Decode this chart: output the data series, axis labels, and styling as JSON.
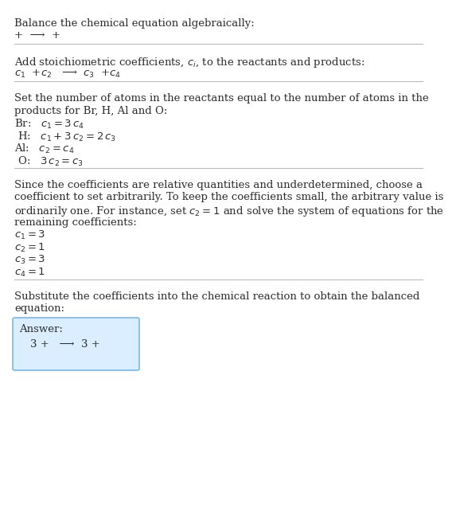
{
  "title": "Balance the chemical equation algebraically:",
  "line1": "+  ⟶  +",
  "section1_title": "Add stoichiometric coefficients, $c_i$, to the reactants and products:",
  "section1_eq": "$c_1$  +$c_2$   ⟶  $c_3$  +$c_4$",
  "section2_title_lines": [
    "Set the number of atoms in the reactants equal to the number of atoms in the",
    "products for Br, H, Al and O:"
  ],
  "section2_lines": [
    "Br:   $c_1 = 3\\,c_4$",
    " H:   $c_1 + 3\\,c_2 = 2\\,c_3$",
    "Al:   $c_2 = c_4$",
    " O:   $3\\,c_2 = c_3$"
  ],
  "section3_title_lines": [
    "Since the coefficients are relative quantities and underdetermined, choose a",
    "coefficient to set arbitrarily. To keep the coefficients small, the arbitrary value is",
    "ordinarily one. For instance, set $c_2 = 1$ and solve the system of equations for the",
    "remaining coefficients:"
  ],
  "section3_lines": [
    "$c_1 = 3$",
    "$c_2 = 1$",
    "$c_3 = 3$",
    "$c_4 = 1$"
  ],
  "section4_title_lines": [
    "Substitute the coefficients into the chemical reaction to obtain the balanced",
    "equation:"
  ],
  "answer_label": "Answer:",
  "answer_eq": "3 +   ⟶  3 +",
  "bg_color": "#ffffff",
  "text_color": "#2d2d2d",
  "line_color": "#bbbbbb",
  "answer_box_color": "#dbeeff",
  "answer_box_border": "#7ab8e8",
  "font_size": 9.5
}
